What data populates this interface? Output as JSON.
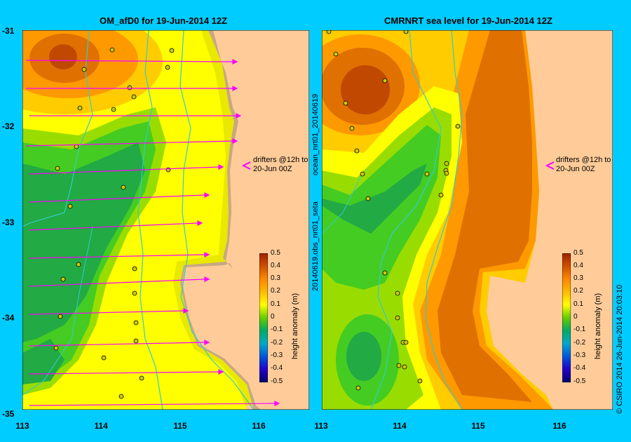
{
  "left_title": "OM_afD0 for 19-Jun-2014 12Z",
  "right_title": "CMRNRT sea level  for 19-Jun-2014 12Z",
  "y_ticks": [
    "-31",
    "-32",
    "-33",
    "-34",
    "-35"
  ],
  "x_ticks": [
    "113",
    "114",
    "115",
    "116"
  ],
  "drifters_note_line1": "drifters @12h to",
  "drifters_note_line2": "20-Jun 00Z",
  "colorbar_ticks": [
    "0.5",
    "0.4",
    "0.3",
    "0.2",
    "0.1",
    "0",
    "-0.1",
    "-0.2",
    "-0.3",
    "-0.4",
    "-0.5"
  ],
  "colorbar_label": "height anomaly (m)",
  "right_side_label_top": "ocean_nrt01_20140619",
  "right_side_label_bottom": "20140619.obs_nrt01_seta",
  "credit": "© CSIRO 2014   26-Jun-2014 20:03:10",
  "colors": {
    "background": "#00ccff",
    "land": "#ffcc99",
    "arrow": "#ff00ff"
  }
}
